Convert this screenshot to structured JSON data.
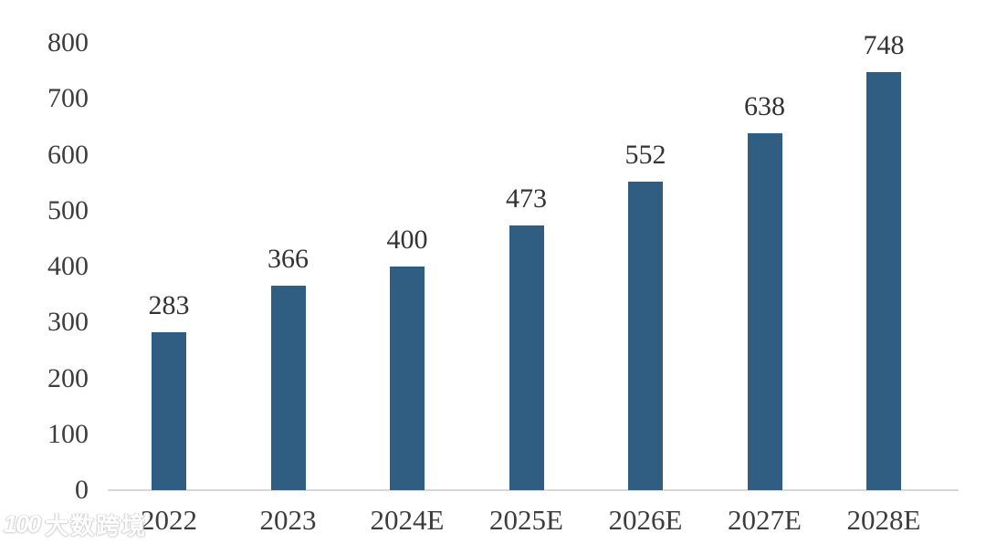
{
  "chart_data": {
    "type": "bar",
    "title": "",
    "xlabel": "",
    "ylabel": "",
    "categories": [
      "2022",
      "2023",
      "2024E",
      "2025E",
      "2026E",
      "2027E",
      "2028E"
    ],
    "values": [
      283,
      366,
      400,
      473,
      552,
      638,
      748
    ],
    "ylim": [
      0,
      800
    ],
    "yticks": [
      0,
      100,
      200,
      300,
      400,
      500,
      600,
      700,
      800
    ],
    "grid": false,
    "legend": false,
    "bar_color": "#2f5e82",
    "axis_line_color": "#d8d8d8",
    "label_color": "#333333"
  },
  "watermark": {
    "logo": "100",
    "text": "大数跨境"
  }
}
